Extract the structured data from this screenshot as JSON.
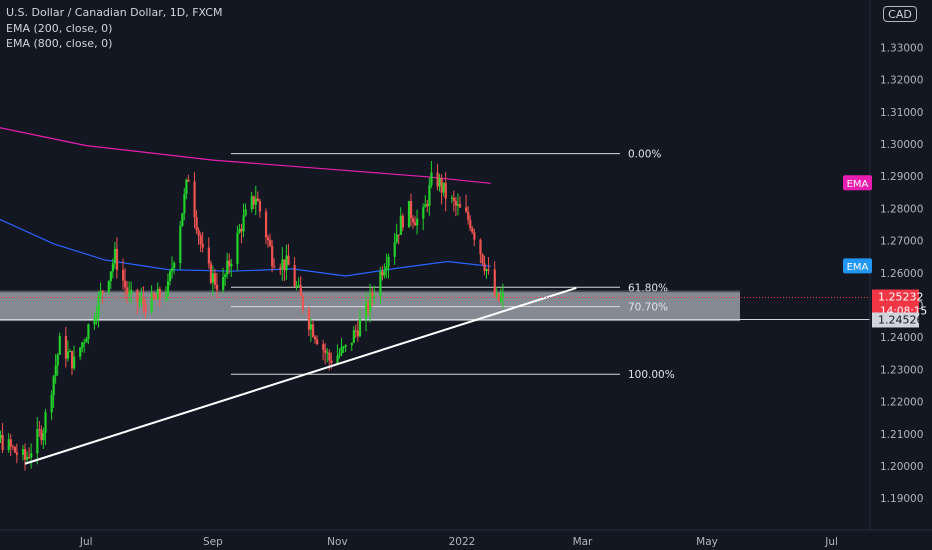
{
  "legend": {
    "symbol": "U.S. Dollar / Canadian Dollar, 1D, FXCM",
    "ema1": "EMA (200, close, 0)",
    "ema2": "EMA (800, close, 0)"
  },
  "currency_badge": "CAD",
  "chart_data": {
    "type": "candlestick",
    "title": "U.S. Dollar / Canadian Dollar, 1D, FXCM",
    "x_ticks": [
      "Jul",
      "Sep",
      "Nov",
      "2022",
      "Mar",
      "May",
      "Jul"
    ],
    "y_ticks": [
      "1.33000",
      "1.32000",
      "1.31000",
      "1.30000",
      "1.29000",
      "1.28000",
      "1.27000",
      "1.26000",
      "1.25000",
      "1.24000",
      "1.23000",
      "1.22000",
      "1.21000",
      "1.20000",
      "1.19000"
    ],
    "ylim": [
      1.184,
      1.3385
    ],
    "fib_levels": [
      {
        "label": "0.00%",
        "price": 1.297
      },
      {
        "label": "61.80%",
        "price": 1.2555
      },
      {
        "label": "70.70%",
        "price": 1.2495
      },
      {
        "label": "100.00%",
        "price": 1.2285
      }
    ],
    "support_zone": [
      1.245,
      1.254
    ],
    "trendline": [
      {
        "date": "2021-06-01",
        "price": 1.2007
      },
      {
        "date": "2022-02-26",
        "price": 1.2553
      }
    ],
    "ema_labels": [
      {
        "text": "EMA",
        "price": 1.2878,
        "color": "#e91eb0"
      },
      {
        "text": "EMA",
        "price": 1.262,
        "color": "#2196f3"
      }
    ],
    "last_price": {
      "value": "1.25232",
      "countdown": "14:08:15"
    },
    "support_label": "1.24526",
    "ema_800": [
      {
        "date": "2021-05-01",
        "price": 1.3075
      },
      {
        "date": "2021-07-01",
        "price": 1.2995
      },
      {
        "date": "2021-09-01",
        "price": 1.295
      },
      {
        "date": "2021-11-01",
        "price": 1.292
      },
      {
        "date": "2021-12-15",
        "price": 1.2898
      },
      {
        "date": "2022-01-15",
        "price": 1.2878
      }
    ],
    "ema_200": [
      {
        "date": "2021-05-01",
        "price": 1.2817
      },
      {
        "date": "2021-05-20",
        "price": 1.2765
      },
      {
        "date": "2021-06-15",
        "price": 1.269
      },
      {
        "date": "2021-07-10",
        "price": 1.264
      },
      {
        "date": "2021-08-10",
        "price": 1.261
      },
      {
        "date": "2021-09-10",
        "price": 1.2605
      },
      {
        "date": "2021-10-10",
        "price": 1.2612
      },
      {
        "date": "2021-11-05",
        "price": 1.259
      },
      {
        "date": "2021-12-01",
        "price": 1.2615
      },
      {
        "date": "2021-12-25",
        "price": 1.2635
      },
      {
        "date": "2022-01-15",
        "price": 1.262
      }
    ],
    "price_path": [
      {
        "date": "2021-05-01",
        "price": 1.213
      },
      {
        "date": "2021-05-20",
        "price": 1.208
      },
      {
        "date": "2021-06-01",
        "price": 1.202
      },
      {
        "date": "2021-06-10",
        "price": 1.212
      },
      {
        "date": "2021-06-18",
        "price": 1.238
      },
      {
        "date": "2021-06-25",
        "price": 1.232
      },
      {
        "date": "2021-07-05",
        "price": 1.248
      },
      {
        "date": "2021-07-15",
        "price": 1.265
      },
      {
        "date": "2021-07-22",
        "price": 1.252
      },
      {
        "date": "2021-08-01",
        "price": 1.25
      },
      {
        "date": "2021-08-10",
        "price": 1.255
      },
      {
        "date": "2021-08-20",
        "price": 1.29
      },
      {
        "date": "2021-08-28",
        "price": 1.262
      },
      {
        "date": "2021-09-05",
        "price": 1.255
      },
      {
        "date": "2021-09-15",
        "price": 1.275
      },
      {
        "date": "2021-09-22",
        "price": 1.284
      },
      {
        "date": "2021-09-30",
        "price": 1.265
      },
      {
        "date": "2021-10-08",
        "price": 1.262
      },
      {
        "date": "2021-10-18",
        "price": 1.245
      },
      {
        "date": "2021-10-28",
        "price": 1.233
      },
      {
        "date": "2021-11-05",
        "price": 1.236
      },
      {
        "date": "2021-11-15",
        "price": 1.248
      },
      {
        "date": "2021-11-25",
        "price": 1.265
      },
      {
        "date": "2021-12-05",
        "price": 1.28
      },
      {
        "date": "2021-12-12",
        "price": 1.275
      },
      {
        "date": "2021-12-18",
        "price": 1.291
      },
      {
        "date": "2021-12-25",
        "price": 1.283
      },
      {
        "date": "2022-01-05",
        "price": 1.276
      },
      {
        "date": "2022-01-12",
        "price": 1.263
      },
      {
        "date": "2022-01-18",
        "price": 1.251
      },
      {
        "date": "2022-01-21",
        "price": 1.252
      }
    ]
  },
  "colors": {
    "background": "#131722",
    "up": "#26a69a",
    "up_bright": "#22d12a",
    "down": "#ef5350",
    "ema_800": "#e91eb0",
    "ema_200": "#2962ff",
    "fib": "#d9d9d9",
    "zone": "#b2b5be",
    "axis_text": "#b2b5be",
    "last_price": "#f23645"
  }
}
